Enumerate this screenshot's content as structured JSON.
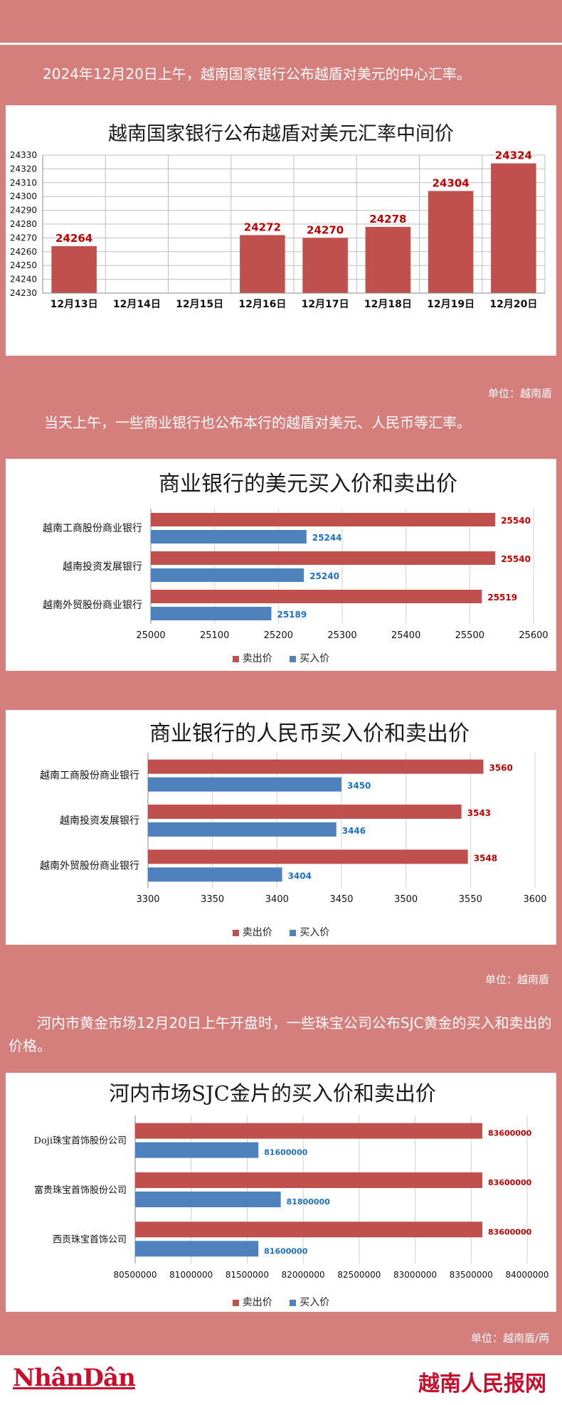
{
  "intro1": "2024年12月20日上午，越南国家银行公布越盾对美元的中心汇率。",
  "unit1": "单位：越南盾",
  "intro2": "当天上午，一些商业银行也公布本行的越盾对美元、人民币等汇率。",
  "unit2": "单位：越南盾",
  "intro3": "河内市黄金市场12月20日上午开盘时，一些珠宝公司公布SJC黄金的买入和卖出的价格。",
  "unit3": "单位：越南盾/两",
  "legend_sell": "卖出价",
  "legend_buy": "买入价",
  "logo_left": "NhânDân",
  "logo_right": "越南人民报网",
  "colors": {
    "sell": "#c0504d",
    "buy": "#4f81bd",
    "sell_label": "#c00000",
    "buy_label": "#1f6fc0",
    "background": "#d57f7c"
  },
  "chart_data": [
    {
      "type": "bar",
      "title": "越南国家银行公布越盾对美元汇率中间价",
      "categories": [
        "12月13日",
        "12月14日",
        "12月15日",
        "12月16日",
        "12月17日",
        "12月18日",
        "12月19日",
        "12月20日"
      ],
      "values": [
        24264,
        null,
        null,
        24272,
        24270,
        24278,
        24304,
        24324
      ],
      "ylim": [
        24230,
        24330
      ],
      "yticks": [
        24230,
        24240,
        24250,
        24260,
        24270,
        24280,
        24290,
        24300,
        24310,
        24320,
        24330
      ],
      "grid": true,
      "color": "#c0504d"
    },
    {
      "type": "bar",
      "orientation": "horizontal",
      "title": "商业银行的美元买入价和卖出价",
      "categories": [
        "越南工商股份商业银行",
        "越南投资发展银行",
        "越南外贸股份商业银行"
      ],
      "series": [
        {
          "name": "卖出价",
          "values": [
            25540,
            25540,
            25519
          ]
        },
        {
          "name": "买入价",
          "values": [
            25244,
            25240,
            25189
          ]
        }
      ],
      "xlim": [
        25000,
        25600
      ],
      "xticks": [
        25000,
        25100,
        25200,
        25300,
        25400,
        25500,
        25600
      ],
      "legend": "bottom"
    },
    {
      "type": "bar",
      "orientation": "horizontal",
      "title": "商业银行的人民币买入价和卖出价",
      "categories": [
        "越南工商股份商业银行",
        "越南投资发展银行",
        "越南外贸股份商业银行"
      ],
      "series": [
        {
          "name": "卖出价",
          "values": [
            3560,
            3543,
            3548
          ]
        },
        {
          "name": "买入价",
          "values": [
            3450,
            3446,
            3404
          ]
        }
      ],
      "xlim": [
        3300,
        3600
      ],
      "xticks": [
        3300,
        3350,
        3400,
        3450,
        3500,
        3550,
        3600
      ],
      "legend": "bottom"
    },
    {
      "type": "bar",
      "orientation": "horizontal",
      "title": "河内市场SJC金片的买入价和卖出价",
      "categories": [
        "Doji珠宝首饰股份公司",
        "富贵珠宝首饰股份公司",
        "西贡珠宝首饰公司"
      ],
      "series": [
        {
          "name": "卖出价",
          "values": [
            83600000,
            83600000,
            83600000
          ]
        },
        {
          "name": "买入价",
          "values": [
            81600000,
            81800000,
            81600000
          ]
        }
      ],
      "xlim": [
        80500000,
        84000000
      ],
      "xticks": [
        80500000,
        81000000,
        81500000,
        82000000,
        82500000,
        83000000,
        83500000,
        84000000
      ],
      "legend": "bottom"
    }
  ]
}
